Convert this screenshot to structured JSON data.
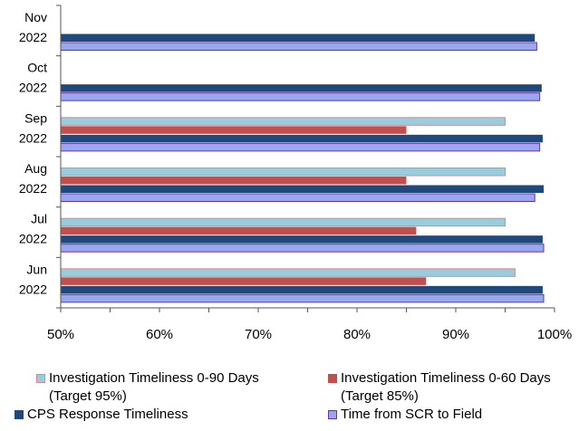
{
  "chart_data": {
    "type": "bar",
    "orientation": "horizontal",
    "categories": [
      [
        "Nov",
        "2022"
      ],
      [
        "Oct",
        "2022"
      ],
      [
        "Sep",
        "2022"
      ],
      [
        "Aug",
        "2022"
      ],
      [
        "Jul",
        "2022"
      ],
      [
        "Jun",
        "2022"
      ]
    ],
    "series": [
      {
        "name": "Investigation Timeliness 0-90 Days",
        "name_line2": "(Target 95%)",
        "color": "#99CCDD",
        "values": [
          null,
          null,
          95,
          95,
          95,
          96
        ]
      },
      {
        "name": "Investigation Timeliness 0-60 Days",
        "name_line2": "(Target 85%)",
        "color": "#C0504D",
        "values": [
          null,
          null,
          85,
          85,
          86,
          87
        ]
      },
      {
        "name": "CPS Response Timeliness",
        "name_line2": "",
        "color": "#1F497D",
        "values": [
          98,
          98.7,
          98.8,
          98.9,
          98.8,
          98.8
        ]
      },
      {
        "name": "Time from SCR to Field",
        "name_line2": "",
        "color": "#99A8EE",
        "values": [
          98.2,
          98.5,
          98.5,
          98,
          98.9,
          98.9
        ]
      }
    ],
    "xlim": [
      50,
      100
    ],
    "x_ticks": [
      "50%",
      "60%",
      "70%",
      "80%",
      "90%",
      "100%"
    ],
    "x_tick_values": [
      50,
      60,
      70,
      80,
      90,
      100
    ],
    "grid": false,
    "legend": "bottom"
  }
}
